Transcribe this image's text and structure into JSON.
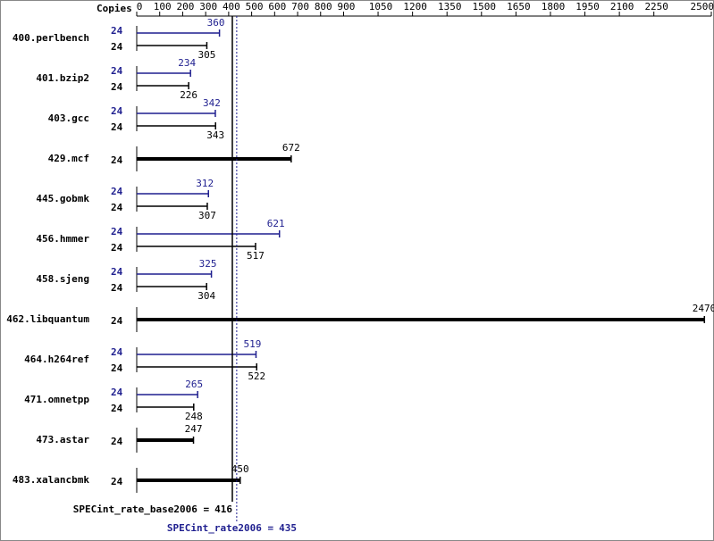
{
  "chart_data": {
    "type": "bar",
    "axis_label": "Copies",
    "xlim": [
      0,
      2500
    ],
    "xticks": [
      0,
      100,
      200,
      300,
      400,
      500,
      600,
      700,
      800,
      900,
      1050,
      1200,
      1350,
      1500,
      1650,
      1800,
      1950,
      2100,
      2250,
      2500
    ],
    "base_color": "#000000",
    "peak_color": "#1f1f8f",
    "rows": [
      {
        "label": "400.perlbench",
        "peak": {
          "copies": 24,
          "value": 360
        },
        "base": {
          "copies": 24,
          "value": 305
        }
      },
      {
        "label": "401.bzip2",
        "peak": {
          "copies": 24,
          "value": 234
        },
        "base": {
          "copies": 24,
          "value": 226
        }
      },
      {
        "label": "403.gcc",
        "peak": {
          "copies": 24,
          "value": 342
        },
        "base": {
          "copies": 24,
          "value": 343
        }
      },
      {
        "label": "429.mcf",
        "copies": 24,
        "value": 672
      },
      {
        "label": "445.gobmk",
        "peak": {
          "copies": 24,
          "value": 312
        },
        "base": {
          "copies": 24,
          "value": 307
        }
      },
      {
        "label": "456.hmmer",
        "peak": {
          "copies": 24,
          "value": 621
        },
        "base": {
          "copies": 24,
          "value": 517
        }
      },
      {
        "label": "458.sjeng",
        "peak": {
          "copies": 24,
          "value": 325
        },
        "base": {
          "copies": 24,
          "value": 304
        }
      },
      {
        "label": "462.libquantum",
        "copies": 24,
        "value": 2470
      },
      {
        "label": "464.h264ref",
        "peak": {
          "copies": 24,
          "value": 519
        },
        "base": {
          "copies": 24,
          "value": 522
        }
      },
      {
        "label": "471.omnetpp",
        "peak": {
          "copies": 24,
          "value": 265
        },
        "base": {
          "copies": 24,
          "value": 248
        }
      },
      {
        "label": "473.astar",
        "copies": 24,
        "value": 247
      },
      {
        "label": "483.xalancbmk",
        "copies": 24,
        "value": 450
      }
    ],
    "summary_base": {
      "label": "SPECint_rate_base2006 =",
      "value": 416
    },
    "summary_peak": {
      "label": "SPECint_rate2006 =",
      "value": 435
    }
  }
}
